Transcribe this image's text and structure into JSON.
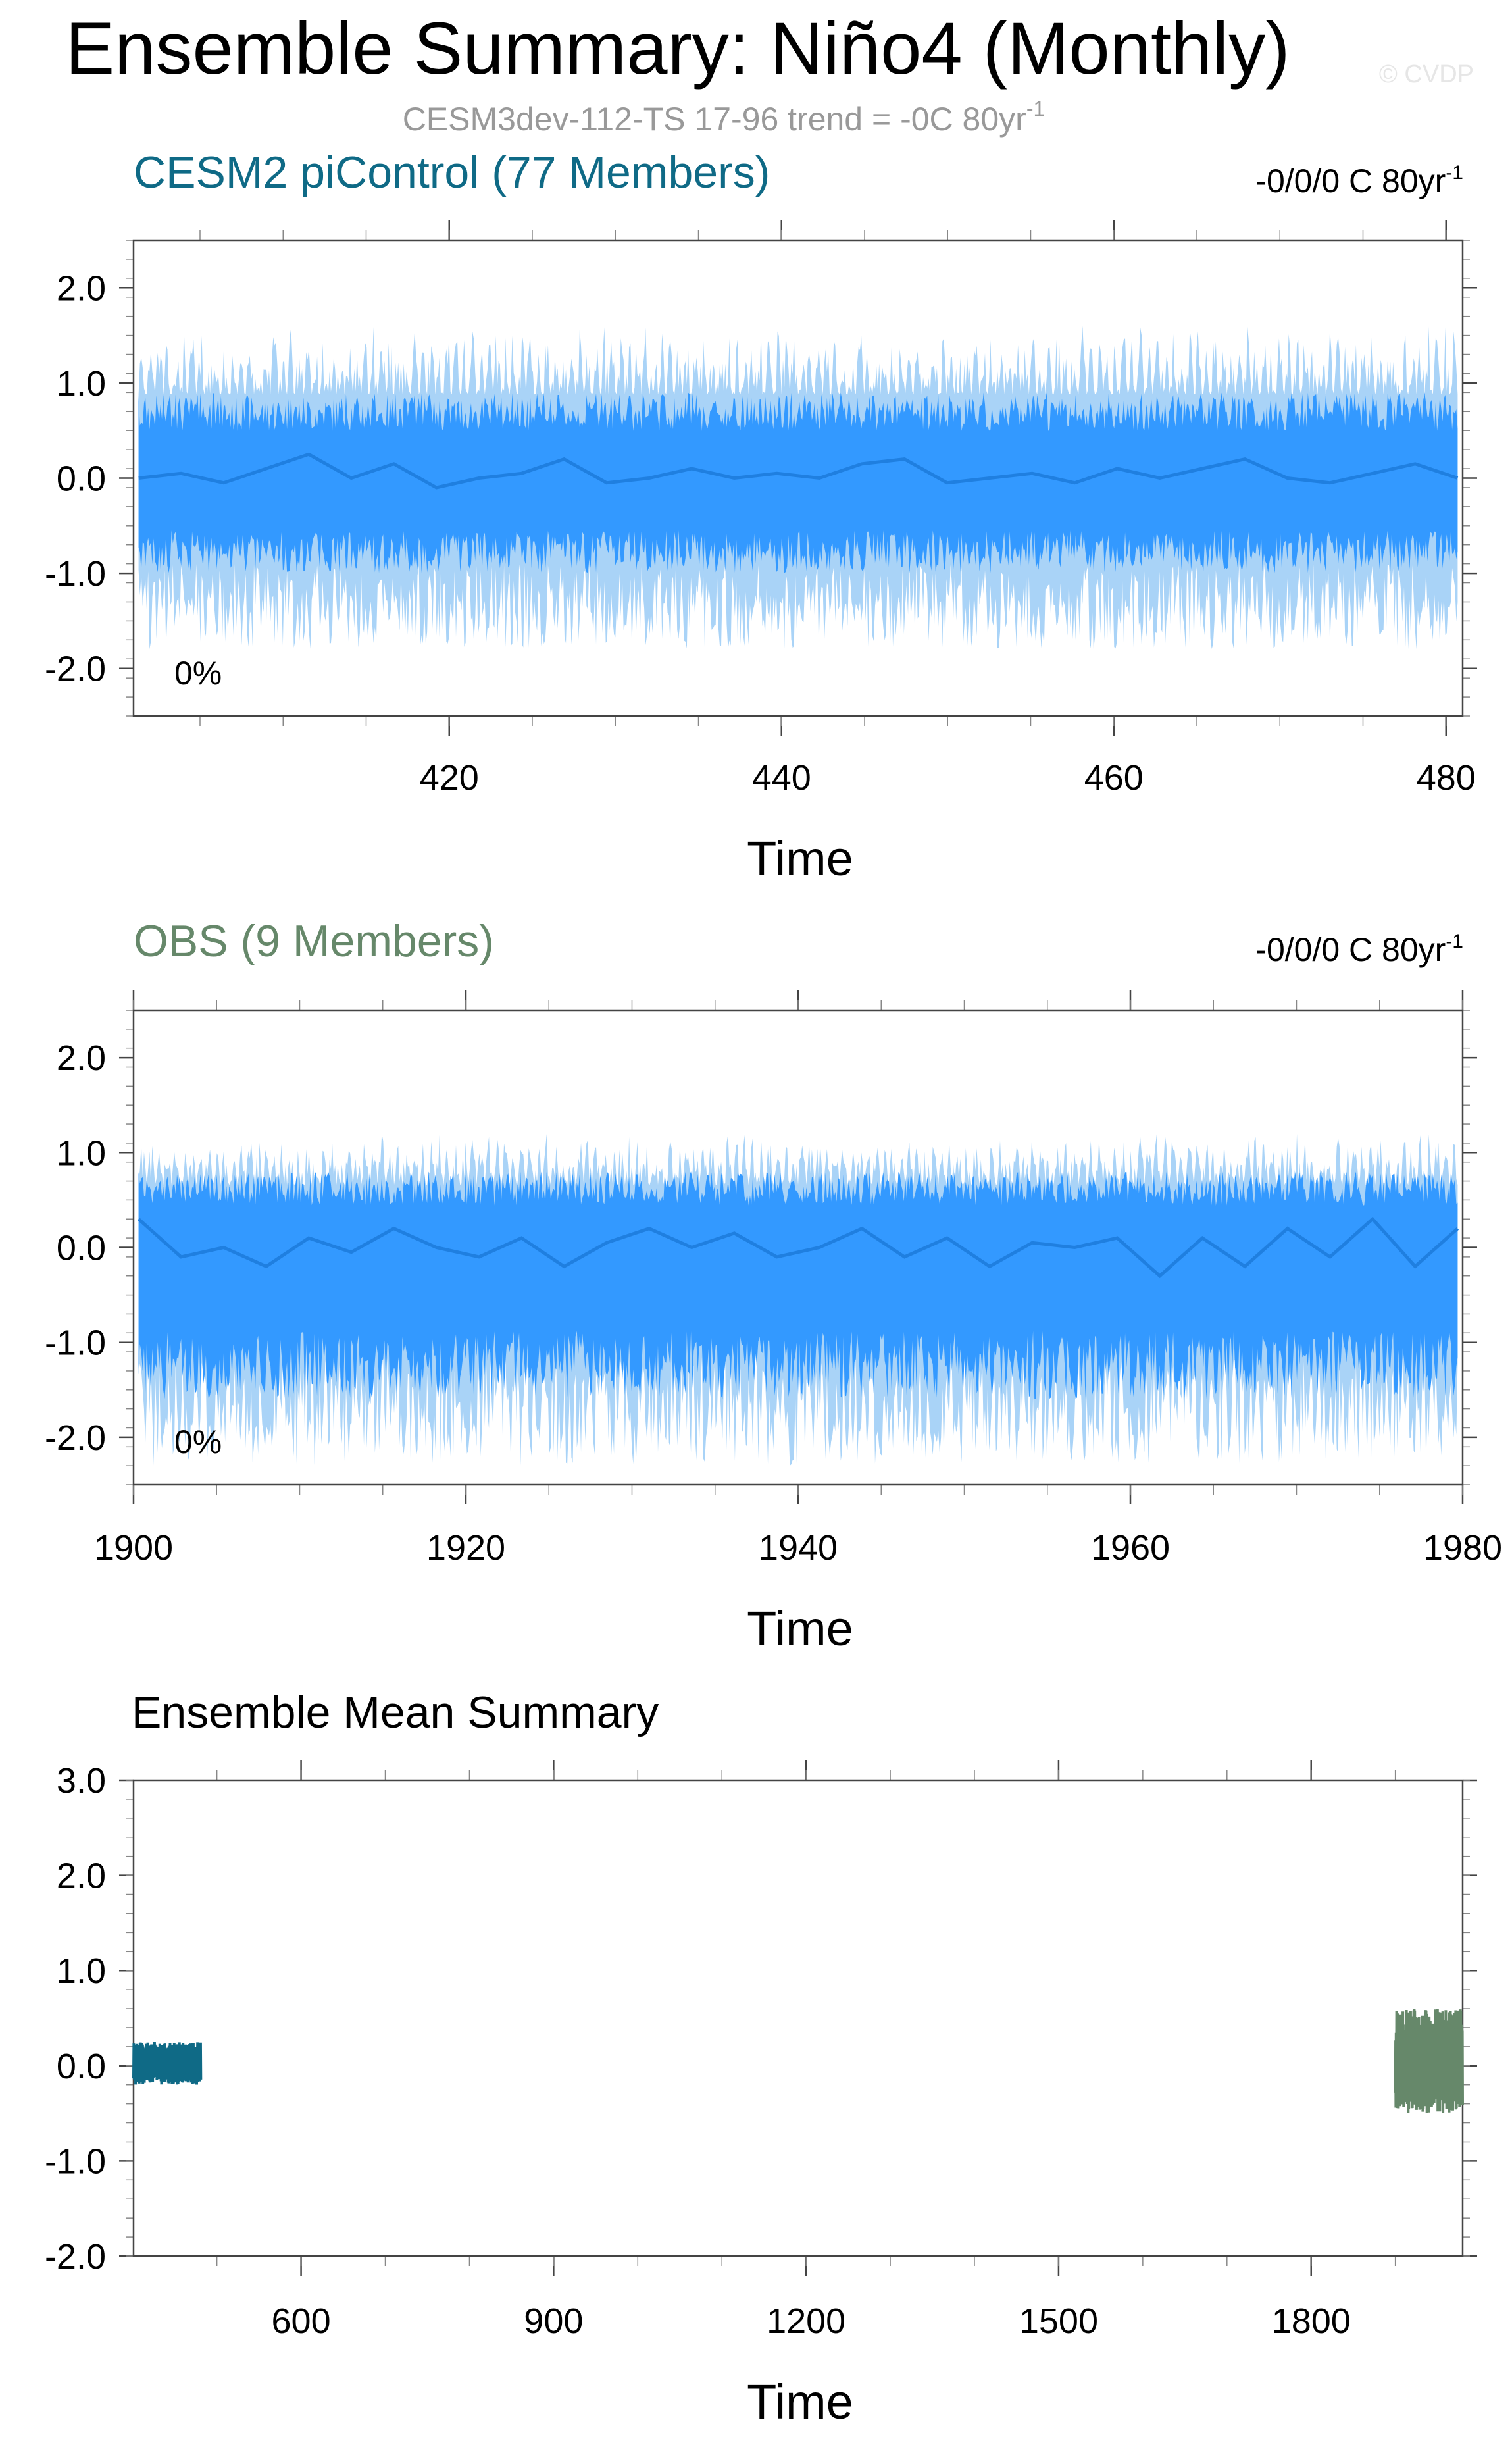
{
  "title": "Ensemble Summary: Niño4 (Monthly)",
  "subtitle": "CESM3dev-112-TS 17-96 trend = -0C 80yr",
  "subtitle_exp": "-1",
  "watermark": "© CVDP",
  "colors": {
    "outer_band": "#a9d3f7",
    "inner_band": "#3399ff",
    "mean_line": "#1f7fe0",
    "cesm": "#0f6a86",
    "obs": "#66886a"
  },
  "chart_data": [
    {
      "type": "area",
      "title": "CESM2 piControl (77 Members)",
      "trend_label": "-0/0/0 C 80yr",
      "trend_exp": "-1",
      "percent_label": "0%",
      "xlabel": "Time",
      "xlim": [
        401,
        481
      ],
      "ylim": [
        -2.5,
        2.5
      ],
      "x_ticks": [
        420,
        440,
        460,
        480
      ],
      "y_ticks": [
        "2.0",
        "1.0",
        "0.0",
        "-1.0",
        "-2.0"
      ],
      "y_tick_values": [
        2,
        1,
        0,
        -1,
        -2
      ],
      "series": [
        {
          "band": "outer",
          "lower": -1.8,
          "upper": 1.6
        },
        {
          "band": "inner",
          "lower": -1.0,
          "upper": 0.9
        },
        {
          "band": "mean",
          "values": [
            0.0,
            0.05,
            -0.05,
            0.1,
            0.25,
            0.0,
            0.15,
            -0.1,
            0.0,
            0.05,
            0.2,
            -0.05,
            0.0,
            0.1,
            0.0,
            0.05,
            0.0,
            0.15,
            0.2,
            -0.05,
            0.0,
            0.05,
            -0.05,
            0.1,
            0.0,
            0.1,
            0.2,
            0.0,
            -0.05,
            0.05,
            0.15,
            0.0
          ]
        }
      ]
    },
    {
      "type": "area",
      "title": "OBS (9 Members)",
      "trend_label": "-0/0/0 C 80yr",
      "trend_exp": "-1",
      "percent_label": "0%",
      "xlabel": "Time",
      "xlim": [
        1900,
        1980
      ],
      "ylim": [
        -2.5,
        2.5
      ],
      "x_ticks": [
        1900,
        1920,
        1940,
        1960,
        1980
      ],
      "y_ticks": [
        "2.0",
        "1.0",
        "0.0",
        "-1.0",
        "-2.0"
      ],
      "y_tick_values": [
        2,
        1,
        0,
        -1,
        -2
      ],
      "series": [
        {
          "band": "outer",
          "lower": -2.3,
          "upper": 1.2
        },
        {
          "band": "inner",
          "lower": -1.6,
          "upper": 0.8
        },
        {
          "band": "mean",
          "values": [
            0.3,
            -0.1,
            0.0,
            -0.2,
            0.1,
            -0.05,
            0.2,
            0.0,
            -0.1,
            0.1,
            -0.2,
            0.05,
            0.2,
            0.0,
            0.15,
            -0.1,
            0.0,
            0.2,
            -0.1,
            0.1,
            -0.2,
            0.05,
            0.0,
            0.1,
            -0.3,
            0.1,
            -0.2,
            0.2,
            -0.1,
            0.3,
            -0.2,
            0.2
          ]
        }
      ]
    },
    {
      "type": "line",
      "title": "Ensemble Mean Summary",
      "xlabel": "Time",
      "xlim": [
        401,
        1980
      ],
      "ylim": [
        -2.0,
        3.0
      ],
      "x_ticks": [
        600,
        900,
        1200,
        1500,
        1800
      ],
      "y_ticks": [
        "3.0",
        "2.0",
        "1.0",
        "0.0",
        "-1.0",
        "-2.0"
      ],
      "y_tick_values": [
        3,
        2,
        1,
        0,
        -1,
        -2
      ],
      "series": [
        {
          "name": "CESM2 piControl (77 Members)",
          "x_range": [
            401,
            481
          ],
          "lower": -0.2,
          "upper": 0.25
        },
        {
          "name": "OBS (9 Members)",
          "x_range": [
            1900,
            1980
          ],
          "lower": -0.5,
          "upper": 0.6
        }
      ]
    }
  ]
}
